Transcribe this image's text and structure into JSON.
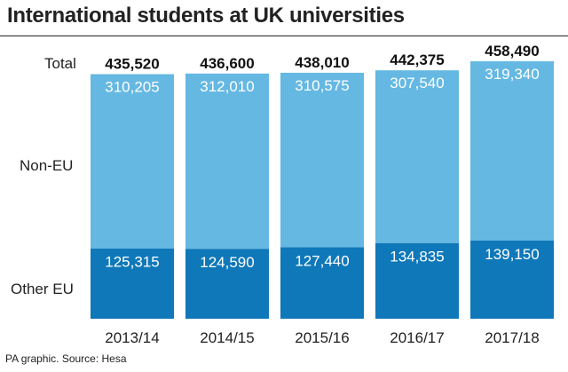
{
  "title": "International students at UK universities",
  "source": "PA graphic. Source: Hesa",
  "row_labels": {
    "total": "Total",
    "non_eu": "Non-EU",
    "other_eu": "Other EU"
  },
  "colors": {
    "non_eu": "#65b8e2",
    "other_eu": "#0f78b9",
    "text": "#222222"
  },
  "chart_data": {
    "type": "bar",
    "stacked": true,
    "categories": [
      "2013/14",
      "2014/15",
      "2015/16",
      "2016/17",
      "2017/18"
    ],
    "series": [
      {
        "name": "Other EU",
        "values": [
          125315,
          124590,
          127440,
          134835,
          139150
        ],
        "labels": [
          "125,315",
          "124,590",
          "127,440",
          "134,835",
          "139,150"
        ]
      },
      {
        "name": "Non-EU",
        "values": [
          310205,
          312010,
          310575,
          307540,
          319340
        ],
        "labels": [
          "310,205",
          "312,010",
          "310,575",
          "307,540",
          "319,340"
        ]
      }
    ],
    "totals": [
      435520,
      436600,
      438010,
      442375,
      458490
    ],
    "total_labels": [
      "435,520",
      "436,600",
      "438,010",
      "442,375",
      "458,490"
    ],
    "title": "International students at UK universities",
    "grid": false,
    "legend": "none"
  }
}
